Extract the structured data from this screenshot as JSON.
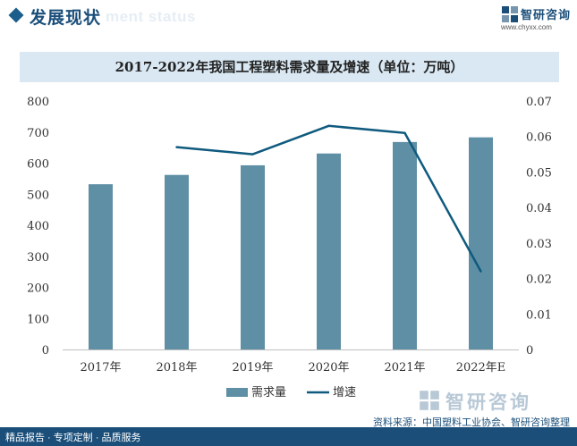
{
  "header": {
    "title": "发展现状",
    "subtitle_en": "ment status"
  },
  "logo": {
    "name": "智研咨询",
    "url": "www.chyxx.com"
  },
  "chart_data": {
    "type": "bar",
    "title": "2017-2022年我国工程塑料需求量及增速（单位：万吨）",
    "categories": [
      "2017年",
      "2018年",
      "2019年",
      "2020年",
      "2021年",
      "2022年E"
    ],
    "series": [
      {
        "name": "需求量",
        "type": "bar",
        "axis": "left",
        "color": "#5f8fa4",
        "values": [
          532,
          562,
          593,
          631,
          668,
          683
        ]
      },
      {
        "name": "增速",
        "type": "line",
        "axis": "right",
        "color": "#0f5a7e",
        "values": [
          null,
          0.057,
          0.055,
          0.063,
          0.061,
          0.022
        ]
      }
    ],
    "y_left": {
      "range": [
        0,
        800
      ],
      "ticks": [
        "0",
        "100",
        "200",
        "300",
        "400",
        "500",
        "600",
        "700",
        "800"
      ]
    },
    "y_right": {
      "range": [
        0,
        0.07
      ],
      "ticks": [
        "0",
        "0.01",
        "0.02",
        "0.03",
        "0.04",
        "0.05",
        "0.06",
        "0.07"
      ]
    },
    "legend_position": "bottom-center",
    "grid": false
  },
  "footer": {
    "left_text": "精品报告 · 专项定制 · 品质服务",
    "source_label": "资料来源：",
    "source_text": "中国塑料工业协会、智研咨询整理",
    "brand": "智研咨询"
  }
}
